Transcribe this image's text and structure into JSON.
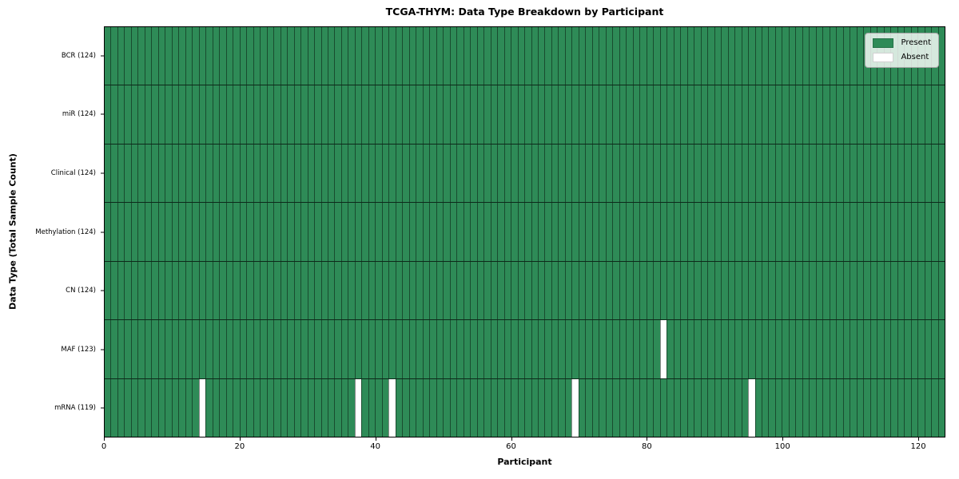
{
  "title": "TCGA-THYM: Data Type Breakdown by Participant",
  "xlabel": "Participant",
  "ylabel": "Data Type (Total Sample Count)",
  "colors": {
    "present": "#2e8b57",
    "absent": "#ffffff",
    "cell_edge": "rgba(0,0,0,0.45)",
    "row_divider": "rgba(0,0,0,0.7)",
    "axis": "#000000",
    "legend_bg": "rgba(255,255,255,0.8)",
    "legend_border": "#a6a6a6"
  },
  "chart_data": {
    "type": "heatmap",
    "title": "TCGA-THYM: Data Type Breakdown by Participant",
    "xlabel": "Participant",
    "ylabel": "Data Type (Total Sample Count)",
    "n_participants": 124,
    "x_axis": {
      "ticks": [
        0,
        20,
        40,
        60,
        80,
        100,
        120
      ],
      "range": [
        0,
        124
      ]
    },
    "grid": "column-edges-visible",
    "legend_position": "upper-right",
    "legend": [
      {
        "label": "Present",
        "color": "#2e8b57"
      },
      {
        "label": "Absent",
        "color": "#ffffff"
      }
    ],
    "rows": [
      {
        "name": "BCR",
        "label": "BCR (124)",
        "total_samples": 124,
        "absent_participants": []
      },
      {
        "name": "miR",
        "label": "miR (124)",
        "total_samples": 124,
        "absent_participants": []
      },
      {
        "name": "Clinical",
        "label": "Clinical (124)",
        "total_samples": 124,
        "absent_participants": []
      },
      {
        "name": "Methylation",
        "label": "Methylation (124)",
        "total_samples": 124,
        "absent_participants": []
      },
      {
        "name": "CN",
        "label": "CN (124)",
        "total_samples": 124,
        "absent_participants": []
      },
      {
        "name": "MAF",
        "label": "MAF (123)",
        "total_samples": 123,
        "absent_participants": [
          82
        ]
      },
      {
        "name": "mRNA",
        "label": "mRNA (119)",
        "total_samples": 119,
        "absent_participants": [
          14,
          37,
          42,
          69,
          95
        ]
      }
    ]
  }
}
